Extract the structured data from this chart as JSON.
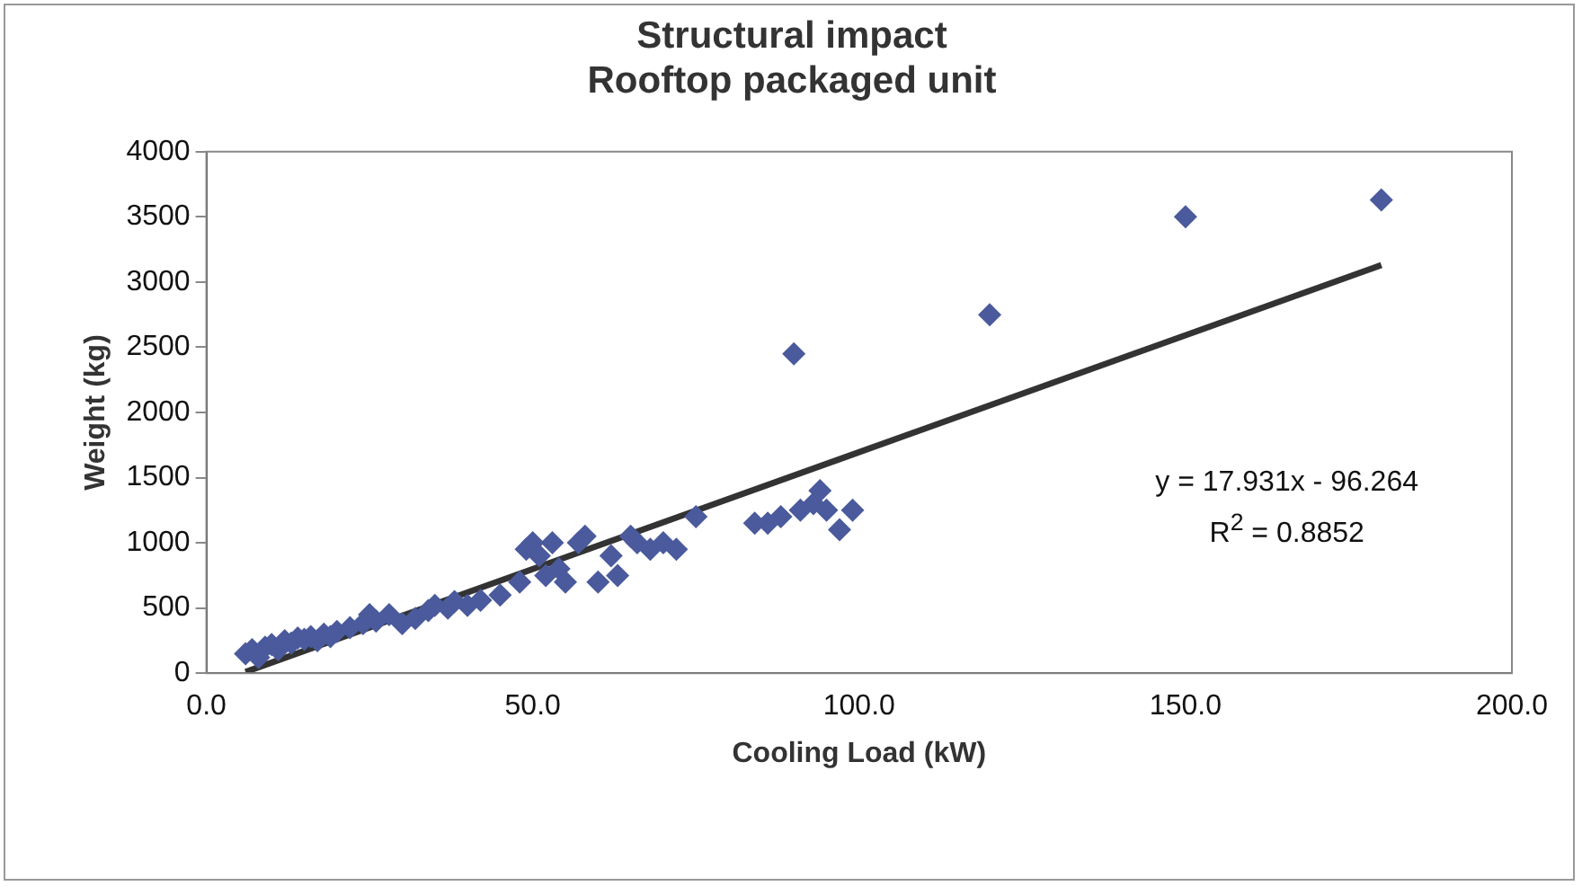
{
  "chart_data": {
    "type": "scatter",
    "title": [
      "Structural impact",
      "Rooftop packaged unit"
    ],
    "xlabel": "Cooling Load (kW)",
    "ylabel": "Weight (kg)",
    "xlim": [
      0,
      200
    ],
    "xticks": [
      {
        "value": 0,
        "label": "0.0"
      },
      {
        "value": 50,
        "label": "50.0"
      },
      {
        "value": 100,
        "label": "100.0"
      },
      {
        "value": 150,
        "label": "150.0"
      },
      {
        "value": 200,
        "label": "200.0"
      }
    ],
    "ylim": [
      0,
      4000
    ],
    "yticks": [
      0,
      500,
      1000,
      1500,
      2000,
      2500,
      3000,
      3500,
      4000
    ],
    "grid": false,
    "legend": false,
    "marker": "diamond",
    "series": [
      {
        "color": "#4a5a9c",
        "x": [
          6,
          7,
          8,
          9,
          10,
          11,
          12,
          13,
          14,
          15,
          16,
          17,
          18,
          19,
          20,
          22,
          24,
          25,
          26,
          28,
          30,
          32,
          34,
          35,
          37,
          38,
          40,
          42,
          45,
          48,
          49,
          50,
          51,
          52,
          53,
          54,
          55,
          57,
          58,
          60,
          62,
          63,
          65,
          66,
          68,
          70,
          72,
          75,
          84,
          86,
          88,
          90,
          91,
          93,
          94,
          95,
          97,
          99,
          120,
          150,
          180
        ],
        "values": [
          150,
          180,
          120,
          200,
          220,
          180,
          250,
          230,
          270,
          260,
          280,
          250,
          300,
          280,
          320,
          350,
          380,
          450,
          400,
          450,
          380,
          420,
          480,
          520,
          500,
          550,
          520,
          560,
          600,
          700,
          950,
          1000,
          900,
          750,
          1000,
          800,
          700,
          1000,
          1050,
          700,
          900,
          750,
          1050,
          1000,
          950,
          1000,
          950,
          1200,
          1150,
          1150,
          1200,
          2450,
          1250,
          1300,
          1400,
          1250,
          1100,
          1250,
          2750,
          3500,
          3630
        ]
      },
      {
        "type": "line",
        "color": "#333333",
        "x": [
          6,
          180
        ],
        "values": [
          10,
          3130
        ],
        "marker": "none",
        "line_style": "solid"
      }
    ],
    "annotations": [
      "y = 17.931x - 96.264",
      "R$^{2}$ = 0.8852"
    ]
  }
}
